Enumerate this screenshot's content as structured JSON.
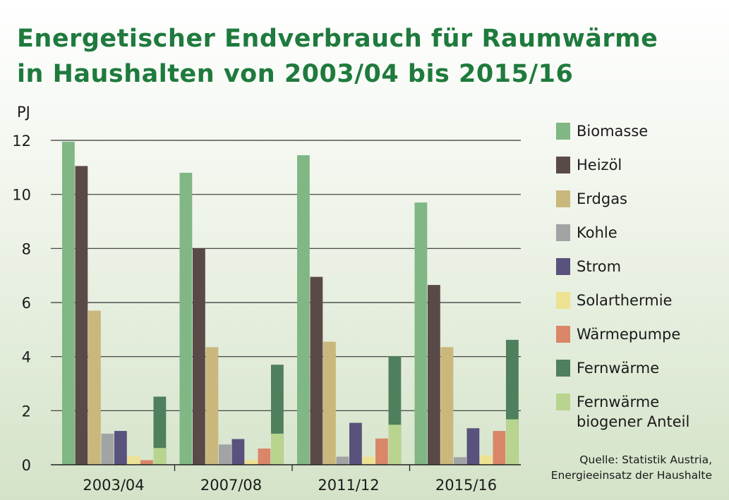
{
  "title_line1": "Energetischer Endverbrauch für Raumwärme",
  "title_line2": "in Haushalten von 2003/04 bis 2015/16",
  "source_line1": "Quelle: Statistik Austria,",
  "source_line2": "Energieeinsatz der Haushalte",
  "chart_data": {
    "type": "bar",
    "title": "Energetischer Endverbrauch für Raumwärme in Haushalten von 2003/04 bis 2015/16",
    "ylabel": "PJ",
    "xlabel": "",
    "ylim": [
      0,
      12
    ],
    "yticks": [
      0,
      2,
      4,
      6,
      8,
      10,
      12
    ],
    "grid": true,
    "legend_position": "right",
    "categories": [
      "2003/04",
      "2007/08",
      "2011/12",
      "2015/16"
    ],
    "series": [
      {
        "name": "Biomasse",
        "color": "#80b784",
        "values": [
          11.95,
          10.8,
          11.45,
          9.7
        ]
      },
      {
        "name": "Heizöl",
        "color": "#5a4a47",
        "values": [
          11.05,
          8.0,
          6.95,
          6.65
        ]
      },
      {
        "name": "Erdgas",
        "color": "#c9b77c",
        "values": [
          5.7,
          4.35,
          4.55,
          4.35
        ]
      },
      {
        "name": "Kohle",
        "color": "#a1a3a5",
        "values": [
          1.15,
          0.75,
          0.3,
          0.28
        ]
      },
      {
        "name": "Strom",
        "color": "#58527c",
        "values": [
          1.25,
          0.95,
          1.55,
          1.35
        ]
      },
      {
        "name": "Solarthermie",
        "color": "#ede293",
        "values": [
          0.32,
          0.18,
          0.3,
          0.35
        ]
      },
      {
        "name": "Wärmepumpe",
        "color": "#d98669",
        "values": [
          0.17,
          0.6,
          0.97,
          1.25
        ]
      },
      {
        "name": "Fernwärme",
        "color": "#4f7f5c",
        "values": [
          2.52,
          3.7,
          4.02,
          4.62
        ]
      },
      {
        "name": "Fernwärme\nbiogener Anteil",
        "color": "#b9d48f",
        "values": [
          0.62,
          1.15,
          1.48,
          1.68
        ]
      }
    ],
    "stacked_overlay": {
      "series": "Fernwärme biogener Anteil",
      "on": "Fernwärme"
    }
  }
}
